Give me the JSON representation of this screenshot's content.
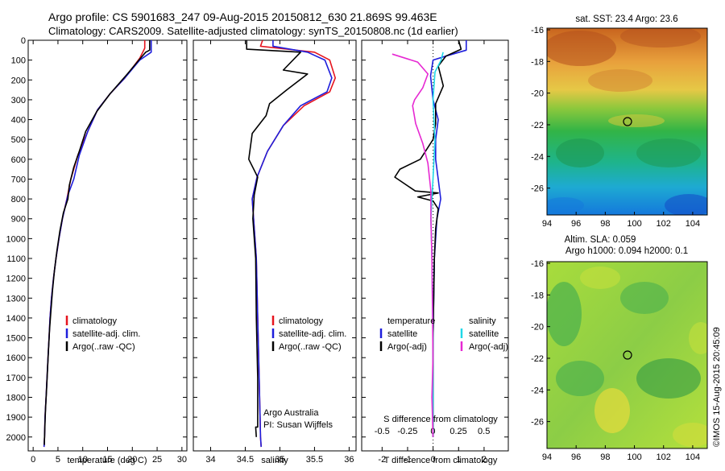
{
  "header": {
    "line1": "Argo profile: CS 5901683_247 09-Aug-2015 20150812_630 21.869S 99.463E",
    "line2": "Climatology: CARS2009. Satellite-adjusted climatology: synTS_20150808.nc (1d earlier)"
  },
  "colors": {
    "climatology": "#e6141e",
    "satellite": "#1e1edc",
    "argo": "#000000",
    "satellite_salinity": "#20d8e8",
    "argo_salinity": "#e628d2"
  },
  "panels": {
    "temperature": {
      "xlabel": "temperature (deg C)",
      "legend": [
        "climatology",
        "satellite-adj. clim.",
        "Argo(..raw -QC)"
      ]
    },
    "salinity": {
      "xlabel": "salinity",
      "legend": [
        "climatology",
        "satellite-adj. clim.",
        "Argo(..raw -QC)"
      ],
      "note_line1": "Argo Australia",
      "note_line2": "PI: Susan Wijffels"
    },
    "difference": {
      "xlabel": "T difference from climatology",
      "top_xlabel": "S difference from climatology",
      "legend_temp_head": "temperature",
      "legend_sal_head": "salinity",
      "legend_temp": [
        "satellite",
        "Argo(-adj)"
      ],
      "legend_sal": [
        "satellite",
        "Argo(-adj)"
      ]
    }
  },
  "maps": {
    "sst_title": "sat. SST: 23.4 Argo: 23.6",
    "sla_title_line1": "Altim. SLA: 0.059",
    "sla_title_line2": "Argo h1000: 0.094 h2000: 0.1",
    "yticks": [
      "-16",
      "-18",
      "-20",
      "-22",
      "-24",
      "-26"
    ],
    "xticks": [
      "94",
      "96",
      "98",
      "100",
      "102",
      "104"
    ]
  },
  "credit": "©IMOS 15-Aug-2015 20:45:09",
  "chart_data": [
    {
      "type": "line",
      "id": "temperature",
      "xlabel": "temperature (deg C)",
      "ylabel": "",
      "xlim": [
        -1,
        31
      ],
      "ylim": [
        2070,
        0
      ],
      "xticks": [
        0,
        5,
        10,
        15,
        20,
        25,
        30
      ],
      "yticks": [
        0,
        100,
        200,
        300,
        400,
        500,
        600,
        700,
        800,
        900,
        1000,
        1100,
        1200,
        1300,
        1400,
        1500,
        1600,
        1700,
        1800,
        1900,
        2000
      ],
      "grid": false,
      "legend": "bottom-left",
      "series": [
        {
          "name": "climatology",
          "color": "#e6141e",
          "points": [
            [
              22.5,
              0
            ],
            [
              22.5,
              40
            ],
            [
              21.5,
              90
            ],
            [
              18.5,
              190
            ],
            [
              15.5,
              270
            ],
            [
              13,
              350
            ],
            [
              11,
              460
            ],
            [
              9,
              580
            ],
            [
              7.6,
              700
            ],
            [
              6.8,
              800
            ],
            [
              5.9,
              900
            ],
            [
              5.2,
              1000
            ],
            [
              4.6,
              1100
            ],
            [
              4.1,
              1200
            ],
            [
              3.7,
              1300
            ],
            [
              3.4,
              1400
            ],
            [
              3.2,
              1500
            ],
            [
              3.0,
              1600
            ],
            [
              2.8,
              1700
            ],
            [
              2.6,
              1800
            ],
            [
              2.4,
              1900
            ],
            [
              2.3,
              2000
            ],
            [
              2.2,
              2050
            ]
          ]
        },
        {
          "name": "satellite-adj. clim.",
          "color": "#1e1edc",
          "points": [
            [
              23.8,
              0
            ],
            [
              23.8,
              60
            ],
            [
              21.5,
              100
            ],
            [
              18.5,
              190
            ],
            [
              15.5,
              270
            ],
            [
              13,
              350
            ],
            [
              11,
              460
            ],
            [
              9.3,
              580
            ],
            [
              8.2,
              700
            ],
            [
              7.0,
              780
            ],
            [
              5.9,
              900
            ],
            [
              5.2,
              1000
            ],
            [
              4.6,
              1100
            ],
            [
              4.1,
              1200
            ],
            [
              3.7,
              1300
            ],
            [
              3.4,
              1400
            ],
            [
              3.2,
              1500
            ],
            [
              3.0,
              1600
            ],
            [
              2.8,
              1700
            ],
            [
              2.6,
              1800
            ],
            [
              2.4,
              1900
            ],
            [
              2.3,
              2000
            ],
            [
              2.2,
              2050
            ]
          ]
        },
        {
          "name": "Argo(..raw -QC)",
          "color": "#000000",
          "points": [
            [
              23.5,
              0
            ],
            [
              23.5,
              50
            ],
            [
              22.7,
              60
            ],
            [
              21.5,
              95
            ],
            [
              19,
              170
            ],
            [
              15.5,
              270
            ],
            [
              12.8,
              360
            ],
            [
              10.6,
              460
            ],
            [
              9.3,
              560
            ],
            [
              8.2,
              640
            ],
            [
              7.3,
              730
            ],
            [
              7.0,
              800
            ],
            [
              6.1,
              870
            ],
            [
              5.4,
              960
            ],
            [
              4.8,
              1060
            ],
            [
              4.3,
              1160
            ],
            [
              3.9,
              1260
            ],
            [
              3.6,
              1360
            ],
            [
              3.3,
              1460
            ],
            [
              3.1,
              1560
            ],
            [
              2.9,
              1660
            ],
            [
              2.7,
              1760
            ],
            [
              2.5,
              1860
            ],
            [
              2.35,
              1960
            ],
            [
              2.25,
              2040
            ]
          ]
        }
      ]
    },
    {
      "type": "line",
      "id": "salinity",
      "xlabel": "salinity",
      "ylabel": "",
      "xlim": [
        33.75,
        36.1
      ],
      "ylim": [
        2070,
        0
      ],
      "xticks": [
        34,
        34.5,
        35,
        35.5,
        36
      ],
      "grid": false,
      "legend": "bottom-left",
      "series": [
        {
          "name": "climatology",
          "color": "#e6141e",
          "points": [
            [
              34.75,
              0
            ],
            [
              34.72,
              30
            ],
            [
              35.5,
              60
            ],
            [
              35.72,
              100
            ],
            [
              35.8,
              190
            ],
            [
              35.72,
              260
            ],
            [
              35.35,
              330
            ],
            [
              35.05,
              430
            ],
            [
              34.82,
              560
            ],
            [
              34.67,
              690
            ],
            [
              34.6,
              800
            ],
            [
              34.62,
              900
            ],
            [
              34.66,
              1100
            ],
            [
              34.68,
              1400
            ],
            [
              34.7,
              1700
            ],
            [
              34.72,
              2000
            ],
            [
              34.73,
              2050
            ]
          ]
        },
        {
          "name": "satellite-adj. clim.",
          "color": "#1e1edc",
          "points": [
            [
              34.9,
              0
            ],
            [
              34.9,
              30
            ],
            [
              35.4,
              60
            ],
            [
              35.65,
              100
            ],
            [
              35.75,
              190
            ],
            [
              35.68,
              260
            ],
            [
              35.3,
              330
            ],
            [
              35.05,
              430
            ],
            [
              34.82,
              560
            ],
            [
              34.67,
              690
            ],
            [
              34.6,
              800
            ],
            [
              34.62,
              900
            ],
            [
              34.66,
              1100
            ],
            [
              34.68,
              1400
            ],
            [
              34.7,
              1700
            ],
            [
              34.72,
              2000
            ],
            [
              34.73,
              2050
            ]
          ]
        },
        {
          "name": "Argo(..raw -QC)",
          "color": "#000000",
          "points": [
            [
              34.52,
              0
            ],
            [
              34.52,
              45
            ],
            [
              35.3,
              60
            ],
            [
              35.05,
              150
            ],
            [
              35.4,
              170
            ],
            [
              35.1,
              250
            ],
            [
              34.85,
              320
            ],
            [
              34.8,
              380
            ],
            [
              34.6,
              470
            ],
            [
              34.55,
              600
            ],
            [
              34.68,
              690
            ],
            [
              34.63,
              780
            ],
            [
              34.61,
              900
            ],
            [
              34.65,
              1100
            ],
            [
              34.66,
              1400
            ],
            [
              34.68,
              1700
            ],
            [
              34.68,
              1950
            ],
            [
              34.65,
              1950
            ],
            [
              34.66,
              2000
            ]
          ]
        }
      ]
    },
    {
      "type": "line",
      "id": "difference",
      "xlabel": "T difference from climatology",
      "top_xlabel": "S difference from climatology",
      "ylabel": "",
      "xlim": [
        -2.8,
        2.95
      ],
      "ylim": [
        2070,
        0
      ],
      "xticks": [
        -2,
        -1,
        0,
        1,
        2
      ],
      "top_xlim": [
        -0.7,
        0.74
      ],
      "top_xticks": [
        -0.5,
        -0.25,
        0,
        0.25,
        0.5
      ],
      "top_xtick_labels": [
        "-0.5",
        "-0.25",
        "0",
        "0.25",
        "0.5"
      ],
      "grid": false,
      "legend": "bottom",
      "series": [
        {
          "name": "temperature satellite",
          "color": "#1e1edc",
          "points": [
            [
              1.3,
              0
            ],
            [
              1.3,
              50
            ],
            [
              0.5,
              80
            ],
            [
              0,
              100
            ],
            [
              -0.1,
              180
            ],
            [
              0,
              300
            ],
            [
              0.2,
              400
            ],
            [
              0.1,
              500
            ],
            [
              0.1,
              600
            ],
            [
              0.2,
              700
            ],
            [
              0.3,
              800
            ],
            [
              0.15,
              900
            ],
            [
              0.05,
              1100
            ],
            [
              0,
              1500
            ],
            [
              0,
              2000
            ]
          ]
        },
        {
          "name": "temperature Argo(-adj)",
          "color": "#000000",
          "points": [
            [
              1.0,
              0
            ],
            [
              1.1,
              45
            ],
            [
              0.5,
              80
            ],
            [
              0.2,
              130
            ],
            [
              0.4,
              230
            ],
            [
              0.1,
              320
            ],
            [
              0.1,
              420
            ],
            [
              0,
              500
            ],
            [
              -0.5,
              600
            ],
            [
              -1.3,
              650
            ],
            [
              -1.5,
              690
            ],
            [
              -0.7,
              760
            ],
            [
              0.2,
              770
            ],
            [
              -0.6,
              790
            ],
            [
              0,
              810
            ],
            [
              0.2,
              850
            ],
            [
              0.1,
              950
            ],
            [
              0.05,
              1100
            ],
            [
              0,
              1500
            ],
            [
              0,
              2000
            ]
          ]
        },
        {
          "name": "salinity satellite",
          "color": "#20d8e8",
          "points": [
            [
              0.1,
              60
            ],
            [
              0.08,
              100
            ],
            [
              0.02,
              160
            ],
            [
              0,
              300
            ],
            [
              0.02,
              500
            ],
            [
              0.0,
              700
            ],
            [
              -0.02,
              900
            ],
            [
              -0.01,
              1100
            ],
            [
              0,
              1500
            ],
            [
              0,
              2000
            ]
          ]
        },
        {
          "name": "salinity Argo(-adj)",
          "color": "#e628d2",
          "points": [
            [
              -0.4,
              70
            ],
            [
              -0.15,
              110
            ],
            [
              -0.05,
              170
            ],
            [
              -0.1,
              240
            ],
            [
              -0.18,
              300
            ],
            [
              -0.2,
              330
            ],
            [
              -0.17,
              420
            ],
            [
              -0.1,
              520
            ],
            [
              -0.05,
              620
            ],
            [
              -0.02,
              760
            ],
            [
              -0.02,
              900
            ],
            [
              -0.01,
              1100
            ],
            [
              0,
              1600
            ],
            [
              -0.01,
              1800
            ],
            [
              0,
              2000
            ]
          ]
        }
      ]
    }
  ]
}
